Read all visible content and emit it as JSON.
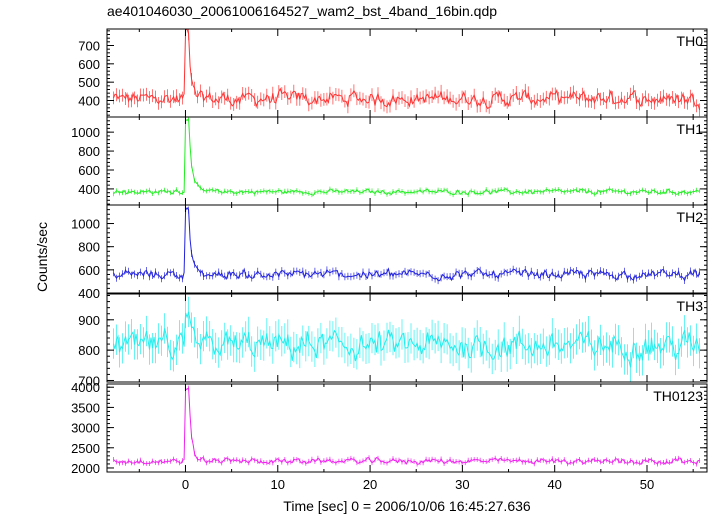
{
  "chart_data": {
    "type": "line",
    "title": "ae401046030_20061006164527_wam2_bst_4band_16bin.qdp",
    "xlabel": "Time [sec] 0 = 2006/10/06 16:45:27.636",
    "ylabel": "Counts/sec",
    "xlim": [
      -8.5,
      56.5
    ],
    "x_ticks": [
      0,
      10,
      20,
      30,
      40,
      50
    ],
    "x_tick_labels": [
      "0",
      "10",
      "20",
      "30",
      "40",
      "50"
    ],
    "t_range": [
      -7.8,
      55.7
    ],
    "peak_time": 0.2,
    "grid": false,
    "panels": [
      {
        "name": "TH0",
        "color": "#ff3333",
        "ylim": [
          310,
          790
        ],
        "ticks": [
          400,
          500,
          600,
          700
        ],
        "baseline": 410,
        "noise": 40,
        "peak": 780,
        "decay": 0.25,
        "err": 35
      },
      {
        "name": "TH1",
        "color": "#22ee22",
        "ylim": [
          230,
          1160
        ],
        "ticks": [
          400,
          600,
          800,
          1000
        ],
        "baseline": 370,
        "noise": 25,
        "peak": 1130,
        "decay": 0.35,
        "err": 25
      },
      {
        "name": "TH2",
        "color": "#2222dd",
        "ylim": [
          400,
          1160
        ],
        "ticks": [
          400,
          600,
          800,
          1000
        ],
        "baseline": 560,
        "noise": 40,
        "peak": 1120,
        "decay": 0.3,
        "err": 30
      },
      {
        "name": "TH3",
        "color": "#22eeee",
        "ylim": [
          695,
          985
        ],
        "ticks": [
          700,
          800,
          900
        ],
        "baseline": 815,
        "noise": 45,
        "peak": 930,
        "decay": 0.2,
        "err": 50
      },
      {
        "name": "TH0123",
        "color": "#ee22ee",
        "ylim": [
          1900,
          4080
        ],
        "ticks": [
          2000,
          2500,
          3000,
          3500,
          4000
        ],
        "baseline": 2170,
        "noise": 70,
        "peak": 3950,
        "decay": 0.3,
        "err": 60
      }
    ]
  }
}
